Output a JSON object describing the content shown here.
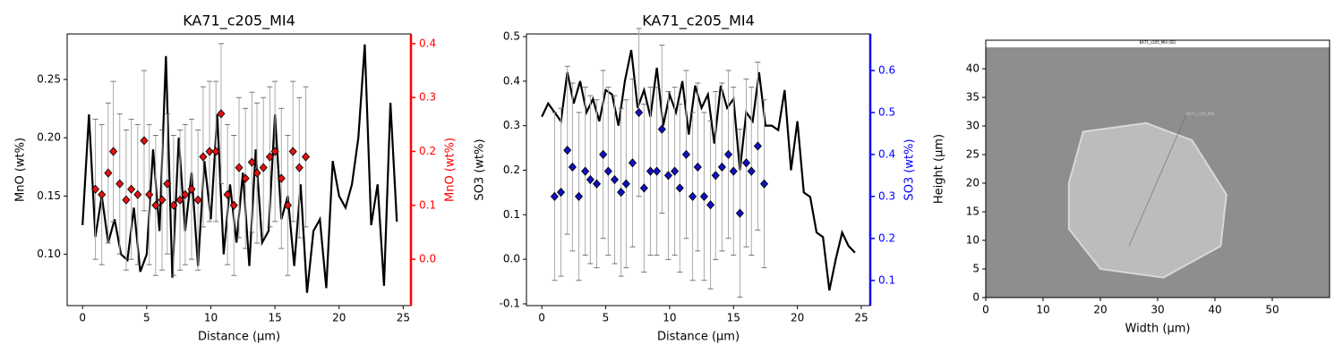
{
  "chart_data": [
    {
      "type": "line-scatter",
      "title": "KA71_c205_MI4",
      "x_label": "Distance (µm)",
      "y_label": "MnO (wt%)",
      "y2_label": "MnO (wt%)",
      "xlim": [
        -1.2,
        25.6
      ],
      "xticks": [
        0,
        5,
        10,
        15,
        20,
        25
      ],
      "ylim": [
        0.056,
        0.289
      ],
      "yticks": [
        {
          "value": 0.1,
          "label": "0.10"
        },
        0.15,
        {
          "value": 0.2,
          "label": "0.20"
        },
        0.25
      ],
      "y2lim": [
        -0.086,
        0.418
      ],
      "y2ticks": [
        {
          "value": 0,
          "label": "0.0"
        },
        0.1,
        0.2,
        0.3,
        0.4
      ],
      "y2_color": "#ff0000",
      "series": [
        {
          "type": "line",
          "color": "#000000",
          "x": [
            0,
            0.5,
            1,
            1.5,
            2,
            2.5,
            3,
            3.5,
            4,
            4.5,
            5,
            5.5,
            6,
            6.5,
            7,
            7.5,
            8,
            8.5,
            9,
            9.5,
            10,
            10.5,
            11,
            11.5,
            12,
            12.5,
            13,
            13.5,
            14,
            14.5,
            15,
            15.5,
            16,
            16.5,
            17,
            17.5,
            18,
            18.5,
            19,
            19.5,
            20,
            20.5,
            21,
            21.5,
            22,
            22.5,
            23,
            23.5,
            24,
            24.5
          ],
          "values": [
            0.125,
            0.22,
            0.115,
            0.15,
            0.11,
            0.13,
            0.1,
            0.095,
            0.14,
            0.085,
            0.1,
            0.19,
            0.12,
            0.27,
            0.08,
            0.2,
            0.12,
            0.17,
            0.09,
            0.18,
            0.13,
            0.22,
            0.1,
            0.16,
            0.11,
            0.17,
            0.09,
            0.19,
            0.11,
            0.12,
            0.22,
            0.13,
            0.15,
            0.09,
            0.16,
            0.067,
            0.12,
            0.13,
            0.071,
            0.18,
            0.15,
            0.14,
            0.16,
            0.2,
            0.28,
            0.125,
            0.16,
            0.073,
            0.23,
            0.128
          ]
        },
        {
          "type": "scatter",
          "axis": "y2",
          "color": "#e01010",
          "x": [
            1.0,
            1.5,
            2.0,
            2.4,
            2.9,
            3.4,
            3.8,
            4.3,
            4.8,
            5.2,
            5.7,
            6.2,
            6.6,
            7.1,
            7.6,
            8.0,
            8.5,
            9.0,
            9.4,
            9.9,
            10.4,
            10.8,
            11.3,
            11.8,
            12.2,
            12.7,
            13.2,
            13.6,
            14.1,
            14.6,
            15.0,
            15.5,
            16.0,
            16.4,
            16.9,
            17.4
          ],
          "values": [
            0.13,
            0.12,
            0.16,
            0.2,
            0.14,
            0.11,
            0.13,
            0.12,
            0.22,
            0.12,
            0.1,
            0.11,
            0.14,
            0.1,
            0.11,
            0.12,
            0.13,
            0.11,
            0.19,
            0.2,
            0.2,
            0.27,
            0.12,
            0.1,
            0.17,
            0.15,
            0.18,
            0.16,
            0.17,
            0.19,
            0.2,
            0.15,
            0.1,
            0.2,
            0.17,
            0.19
          ],
          "errors": [
            0.13,
            0.13,
            0.13,
            0.13,
            0.13,
            0.13,
            0.13,
            0.13,
            0.13,
            0.13,
            0.13,
            0.13,
            0.13,
            0.13,
            0.13,
            0.13,
            0.13,
            0.13,
            0.13,
            0.13,
            0.13,
            0.13,
            0.13,
            0.13,
            0.13,
            0.13,
            0.13,
            0.13,
            0.13,
            0.13,
            0.13,
            0.13,
            0.13,
            0.13,
            0.13,
            0.13
          ]
        }
      ]
    },
    {
      "type": "line-scatter",
      "title": "KA71_c205_MI4",
      "x_label": "Distance (µm)",
      "y_label": "SO3 (wt%)",
      "y2_label": "SO3 (wt%)",
      "xlim": [
        -1.2,
        25.7
      ],
      "xticks": [
        0,
        5,
        10,
        15,
        20,
        25
      ],
      "ylim": [
        -0.104,
        0.506
      ],
      "yticks": [
        -0.1,
        {
          "value": 0,
          "label": "0.0"
        },
        0.1,
        0.2,
        0.3,
        0.4,
        0.5
      ],
      "y2lim": [
        0.04,
        0.687
      ],
      "y2ticks": [
        0.1,
        0.2,
        0.3,
        0.4,
        0.5,
        0.6
      ],
      "y2_color": "#0000ff",
      "series": [
        {
          "type": "line",
          "color": "#000000",
          "x": [
            0,
            0.5,
            1,
            1.5,
            2,
            2.5,
            3,
            3.5,
            4,
            4.5,
            5,
            5.5,
            6,
            6.5,
            7,
            7.5,
            8,
            8.5,
            9,
            9.5,
            10,
            10.5,
            11,
            11.5,
            12,
            12.5,
            13,
            13.5,
            14,
            14.5,
            15,
            15.5,
            16,
            16.5,
            17,
            17.5,
            18,
            18.5,
            19,
            19.5,
            20,
            20.5,
            21,
            21.5,
            22,
            22.5,
            23,
            23.5,
            24,
            24.5
          ],
          "values": [
            0.32,
            0.35,
            0.33,
            0.31,
            0.42,
            0.35,
            0.4,
            0.33,
            0.36,
            0.31,
            0.38,
            0.37,
            0.3,
            0.4,
            0.47,
            0.34,
            0.38,
            0.32,
            0.43,
            0.3,
            0.37,
            0.33,
            0.4,
            0.28,
            0.39,
            0.34,
            0.37,
            0.26,
            0.39,
            0.34,
            0.36,
            0.2,
            0.33,
            0.31,
            0.42,
            0.3,
            0.3,
            0.29,
            0.38,
            0.2,
            0.31,
            0.15,
            0.14,
            0.06,
            0.05,
            -0.07,
            0.0,
            0.06,
            0.03,
            0.015
          ]
        },
        {
          "type": "scatter",
          "axis": "y2",
          "color": "#1010c0",
          "x": [
            1.0,
            1.5,
            2.0,
            2.4,
            2.9,
            3.4,
            3.8,
            4.3,
            4.8,
            5.2,
            5.7,
            6.2,
            6.6,
            7.1,
            7.6,
            8.0,
            8.5,
            9.0,
            9.4,
            9.9,
            10.4,
            10.8,
            11.3,
            11.8,
            12.2,
            12.7,
            13.2,
            13.6,
            14.1,
            14.6,
            15.0,
            15.5,
            16.0,
            16.4,
            16.9,
            17.4
          ],
          "values": [
            0.3,
            0.31,
            0.41,
            0.37,
            0.3,
            0.36,
            0.34,
            0.33,
            0.4,
            0.36,
            0.34,
            0.31,
            0.33,
            0.38,
            0.5,
            0.32,
            0.36,
            0.36,
            0.46,
            0.35,
            0.36,
            0.32,
            0.4,
            0.3,
            0.37,
            0.3,
            0.28,
            0.35,
            0.37,
            0.4,
            0.36,
            0.26,
            0.38,
            0.36,
            0.42,
            0.33
          ],
          "errors": [
            0.2,
            0.2,
            0.2,
            0.2,
            0.2,
            0.2,
            0.2,
            0.2,
            0.2,
            0.2,
            0.2,
            0.2,
            0.2,
            0.2,
            0.2,
            0.2,
            0.2,
            0.2,
            0.2,
            0.2,
            0.2,
            0.2,
            0.2,
            0.2,
            0.2,
            0.2,
            0.2,
            0.2,
            0.2,
            0.2,
            0.2,
            0.2,
            0.2,
            0.2,
            0.2,
            0.2
          ]
        }
      ]
    },
    {
      "type": "image",
      "image_title": "KA71_c205_MI4 (SE)",
      "annotation": "KA71_c205_MI4",
      "x_label": "Width (µm)",
      "y_label": "Height (µm)",
      "xlim": [
        0,
        60
      ],
      "xticks": [
        0,
        10,
        20,
        30,
        40,
        50
      ],
      "ylim": [
        0,
        45
      ],
      "yticks": [
        0,
        5,
        10,
        15,
        20,
        25,
        30,
        35,
        40
      ]
    }
  ]
}
